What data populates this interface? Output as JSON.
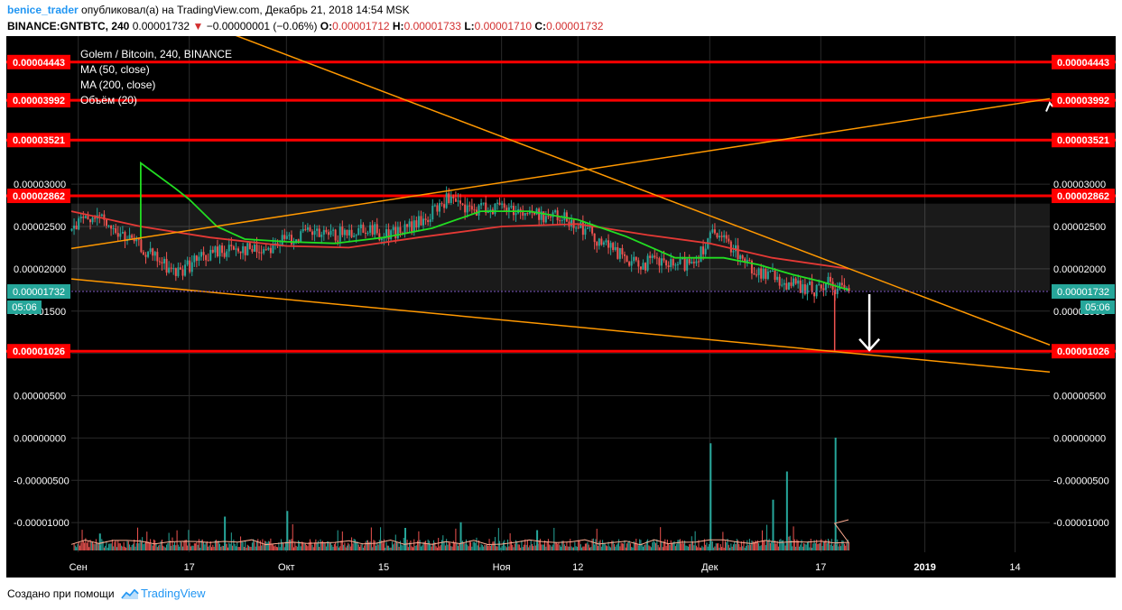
{
  "header": {
    "author": "benice_trader",
    "published_text": "опубликовал(а) на TradingView.com, Декабрь 21, 2018 14:54 MSK",
    "symbol": "BINANCE:GNTBTC, 240",
    "last": "0.00001732",
    "change_arrow": "▼",
    "change": "−0.00000001 (−0.06%)",
    "o_label": "O:",
    "o_value": "0.00001712",
    "h_label": "H:",
    "h_value": "0.00001733",
    "l_label": "L:",
    "l_value": "0.00001710",
    "c_label": "C:",
    "c_value": "0.00001732"
  },
  "footer": {
    "created_with": "Создано при помощи",
    "brand": "TradingView",
    "brand_icon": "tradingview-logo-icon"
  },
  "colors": {
    "background": "#000000",
    "grid": "#2a2a2a",
    "axis_text": "#ffffff",
    "hline": "#ff0000",
    "trendline": "#ff9800",
    "ma50": "#22dd22",
    "ma200": "#e53935",
    "candle_up": "#26a69a",
    "candle_down": "#ef5350",
    "price_badge": "#26a69a",
    "arrow": "#ffffff"
  },
  "chart_data": {
    "type": "candlestick",
    "title": "Golem / Bitcoin, 240, BINANCE",
    "legend": [
      "MA (50, close)",
      "MA (200, close)",
      "Объём (20)"
    ],
    "legend_placement": "top-left",
    "grid": true,
    "ylim": [
      -1.35e-05,
      4.75e-05
    ],
    "y_ticks": [
      "0.00003000",
      "0.00002500",
      "0.00002000",
      "0.00001500",
      "0.00001000",
      "0.00000500",
      "0.00000000",
      "-0.00000500",
      "-0.00001000"
    ],
    "y_tick_values": [
      3e-05,
      2.5e-05,
      2e-05,
      1.5e-05,
      1e-05,
      5e-06,
      0,
      -5e-06,
      -1e-05
    ],
    "x_labels": [
      {
        "label": "Сен",
        "date": "2018-09-01"
      },
      {
        "label": "17",
        "date": "2018-09-17"
      },
      {
        "label": "Окт",
        "date": "2018-10-01"
      },
      {
        "label": "15",
        "date": "2018-10-15"
      },
      {
        "label": "Ноя",
        "date": "2018-11-01"
      },
      {
        "label": "12",
        "date": "2018-11-12"
      },
      {
        "label": "Дек",
        "date": "2018-12-01"
      },
      {
        "label": "17",
        "date": "2018-12-17"
      },
      {
        "label": "2019",
        "date": "2019-01-01",
        "bold": true
      },
      {
        "label": "14",
        "date": "2019-01-14"
      }
    ],
    "x_range": [
      "2018-08-31",
      "2019-01-19"
    ],
    "horizontal_levels": [
      "0.00004443",
      "0.00003992",
      "0.00003521",
      "0.00002862",
      "0.00001026"
    ],
    "current_price": "0.00001732",
    "countdown": "05:06",
    "range_box": {
      "from": "2018-08-31",
      "to": "2019-01-19",
      "top": 2.77e-05,
      "bottom": 1.74e-05
    },
    "trendlines": [
      {
        "points": [
          [
            "2018-08-31",
            2.24e-05
          ],
          [
            "2019-01-19",
            4.01e-05
          ]
        ]
      },
      {
        "points": [
          [
            "2018-08-31",
            1.88e-05
          ],
          [
            "2019-01-19",
            7.8e-06
          ]
        ]
      },
      {
        "points": [
          [
            "2018-09-22",
            4.81e-05
          ],
          [
            "2019-01-19",
            1.1e-05
          ]
        ]
      }
    ],
    "price_path": [
      [
        "2018-08-31",
        2.45e-05
      ],
      [
        "2018-09-03",
        2.65e-05
      ],
      [
        "2018-09-06",
        2.45e-05
      ],
      [
        "2018-09-09",
        2.3e-05
      ],
      [
        "2018-09-12",
        2.12e-05
      ],
      [
        "2018-09-15",
        1.95e-05
      ],
      [
        "2018-09-18",
        2.1e-05
      ],
      [
        "2018-09-21",
        2.2e-05
      ],
      [
        "2018-09-24",
        2.25e-05
      ],
      [
        "2018-09-27",
        2.22e-05
      ],
      [
        "2018-10-01",
        2.35e-05
      ],
      [
        "2018-10-04",
        2.42e-05
      ],
      [
        "2018-10-07",
        2.38e-05
      ],
      [
        "2018-10-10",
        2.43e-05
      ],
      [
        "2018-10-12",
        2.5e-05
      ],
      [
        "2018-10-15",
        2.4e-05
      ],
      [
        "2018-10-18",
        2.46e-05
      ],
      [
        "2018-10-21",
        2.58e-05
      ],
      [
        "2018-10-24",
        2.82e-05
      ],
      [
        "2018-10-27",
        2.68e-05
      ],
      [
        "2018-10-30",
        2.73e-05
      ],
      [
        "2018-11-02",
        2.72e-05
      ],
      [
        "2018-11-05",
        2.65e-05
      ],
      [
        "2018-11-08",
        2.62e-05
      ],
      [
        "2018-11-11",
        2.58e-05
      ],
      [
        "2018-11-14",
        2.4e-05
      ],
      [
        "2018-11-17",
        2.22e-05
      ],
      [
        "2018-11-20",
        2.05e-05
      ],
      [
        "2018-11-23",
        2.08e-05
      ],
      [
        "2018-11-26",
        2.02e-05
      ],
      [
        "2018-11-29",
        2.12e-05
      ],
      [
        "2018-12-01",
        2.4e-05
      ],
      [
        "2018-12-04",
        2.28e-05
      ],
      [
        "2018-12-07",
        2e-05
      ],
      [
        "2018-12-10",
        1.9e-05
      ],
      [
        "2018-12-13",
        1.8e-05
      ],
      [
        "2018-12-16",
        1.75e-05
      ],
      [
        "2018-12-18",
        1.82e-05
      ],
      [
        "2018-12-21",
        1.73e-05
      ]
    ],
    "ma50": [
      [
        "2018-09-10",
        2.35e-05
      ],
      [
        "2018-09-10",
        3.25e-05
      ],
      [
        "2018-09-15",
        2.95e-05
      ],
      [
        "2018-09-17",
        2.82e-05
      ],
      [
        "2018-09-21",
        2.5e-05
      ],
      [
        "2018-09-25",
        2.35e-05
      ],
      [
        "2018-10-01",
        2.32e-05
      ],
      [
        "2018-10-08",
        2.3e-05
      ],
      [
        "2018-10-15",
        2.37e-05
      ],
      [
        "2018-10-22",
        2.48e-05
      ],
      [
        "2018-10-29",
        2.68e-05
      ],
      [
        "2018-11-05",
        2.68e-05
      ],
      [
        "2018-11-12",
        2.58e-05
      ],
      [
        "2018-11-19",
        2.38e-05
      ],
      [
        "2018-11-26",
        2.13e-05
      ],
      [
        "2018-12-03",
        2.13e-05
      ],
      [
        "2018-12-08",
        2.05e-05
      ],
      [
        "2018-12-13",
        1.93e-05
      ],
      [
        "2018-12-17",
        1.85e-05
      ],
      [
        "2018-12-21",
        1.75e-05
      ]
    ],
    "ma200": [
      [
        "2018-08-31",
        2.68e-05
      ],
      [
        "2018-09-10",
        2.5e-05
      ],
      [
        "2018-09-20",
        2.37e-05
      ],
      [
        "2018-10-01",
        2.27e-05
      ],
      [
        "2018-10-10",
        2.25e-05
      ],
      [
        "2018-10-20",
        2.37e-05
      ],
      [
        "2018-11-01",
        2.5e-05
      ],
      [
        "2018-11-12",
        2.53e-05
      ],
      [
        "2018-11-22",
        2.4e-05
      ],
      [
        "2018-12-01",
        2.3e-05
      ],
      [
        "2018-12-10",
        2.13e-05
      ],
      [
        "2018-12-21",
        2e-05
      ]
    ],
    "wick": {
      "date": "2018-12-19",
      "high": 1.73e-05,
      "low": 1.03e-05
    },
    "volume_spikes": [
      {
        "date": "2018-09-04",
        "value": 0.15
      },
      {
        "date": "2018-09-22",
        "value": 0.3
      },
      {
        "date": "2018-10-01",
        "value": 0.35
      },
      {
        "date": "2018-10-18",
        "value": 0.2
      },
      {
        "date": "2018-10-26",
        "value": 0.25
      },
      {
        "date": "2018-11-06",
        "value": 0.18
      },
      {
        "date": "2018-12-01",
        "value": 0.95
      },
      {
        "date": "2018-12-10",
        "value": 0.45
      },
      {
        "date": "2018-12-12",
        "value": 0.7
      },
      {
        "date": "2018-12-19",
        "value": 1.0
      }
    ]
  }
}
